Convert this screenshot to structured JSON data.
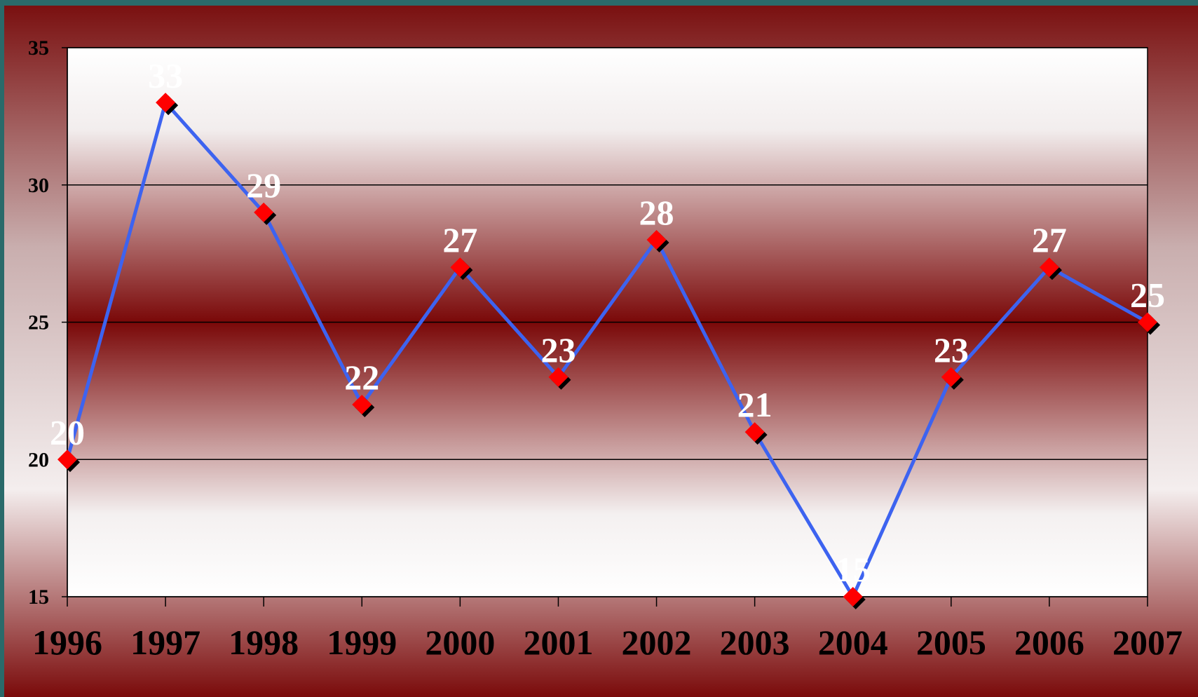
{
  "chart_data": {
    "type": "line",
    "categories": [
      "1996",
      "1997",
      "1998",
      "1999",
      "2000",
      "2001",
      "2002",
      "2003",
      "2004",
      "2005",
      "2006",
      "2007"
    ],
    "values": [
      20,
      33,
      29,
      22,
      27,
      23,
      28,
      21,
      15,
      23,
      27,
      25
    ],
    "color": "#3d63f0",
    "marker_color": "#ff0000",
    "ylim": [
      15,
      35
    ],
    "yticks": [
      15,
      20,
      25,
      30,
      35
    ],
    "grid": true
  }
}
